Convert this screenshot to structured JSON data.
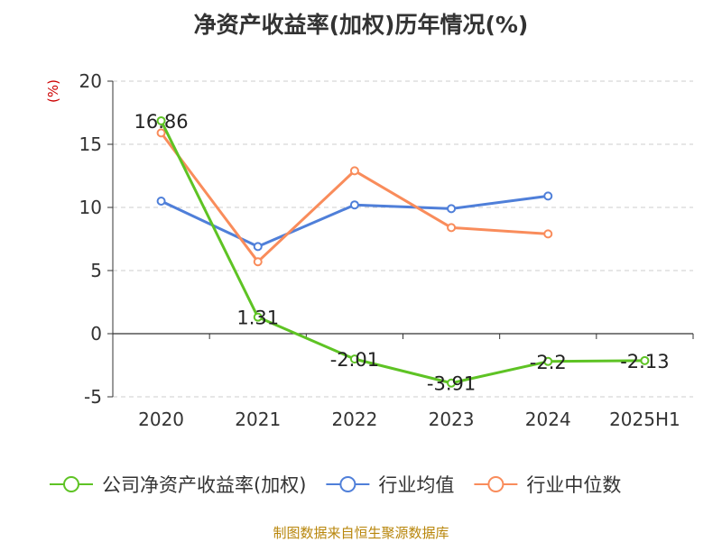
{
  "chart_data": {
    "type": "line",
    "title": "净资产收益率(加权)历年情况(%)",
    "ylabel": "(%)",
    "xlabel": "",
    "categories": [
      "2020",
      "2021",
      "2022",
      "2023",
      "2024",
      "2025H1"
    ],
    "ylim": [
      -5,
      20
    ],
    "yticks": [
      -5,
      0,
      5,
      10,
      15,
      20
    ],
    "grid": true,
    "legend_position": "bottom",
    "series": [
      {
        "name": "公司净资产收益率(加权)",
        "color": "#5ec324",
        "values": [
          16.86,
          1.31,
          -2.01,
          -3.91,
          -2.2,
          -2.13
        ],
        "labels": [
          "16.86",
          "1.31",
          "-2.01",
          "-3.91",
          "-2.2",
          "-2.13"
        ]
      },
      {
        "name": "行业均值",
        "color": "#4f7fd9",
        "values": [
          10.5,
          6.9,
          10.2,
          9.9,
          10.9,
          null
        ]
      },
      {
        "name": "行业中位数",
        "color": "#f98c5b",
        "values": [
          15.9,
          5.7,
          12.9,
          8.4,
          7.9,
          null
        ]
      }
    ]
  },
  "source": "制图数据来自恒生聚源数据库"
}
